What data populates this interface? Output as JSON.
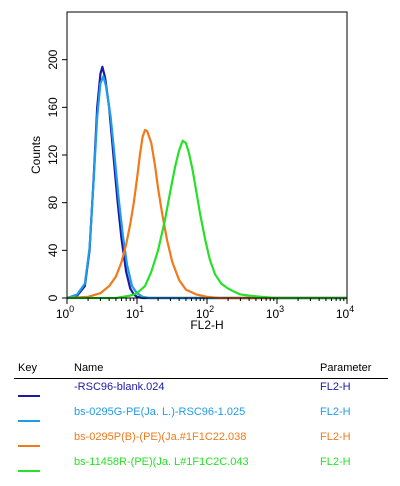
{
  "chart_data": {
    "type": "line",
    "xlabel": "FL2-H",
    "ylabel": "Counts",
    "xscale": "log",
    "xlim": [
      1,
      10000
    ],
    "ylim": [
      0,
      240
    ],
    "x_ticks": [
      {
        "value": 1,
        "base": "10",
        "exp": "0"
      },
      {
        "value": 10,
        "base": "10",
        "exp": "1"
      },
      {
        "value": 100,
        "base": "10",
        "exp": "2"
      },
      {
        "value": 1000,
        "base": "10",
        "exp": "3"
      },
      {
        "value": 10000,
        "base": "10",
        "exp": "4"
      }
    ],
    "y_ticks": [
      0,
      40,
      80,
      120,
      160,
      200
    ],
    "series": [
      {
        "name": "-RSC96-blank.024",
        "color": "#1a1aa6",
        "points": [
          [
            1,
            0
          ],
          [
            1.4,
            2
          ],
          [
            1.8,
            10
          ],
          [
            2.1,
            40
          ],
          [
            2.4,
            100
          ],
          [
            2.7,
            160
          ],
          [
            3,
            188
          ],
          [
            3.2,
            194
          ],
          [
            3.5,
            185
          ],
          [
            4,
            160
          ],
          [
            4.6,
            120
          ],
          [
            5.3,
            80
          ],
          [
            6,
            50
          ],
          [
            7,
            22
          ],
          [
            8,
            8
          ],
          [
            9,
            3
          ],
          [
            10,
            1
          ],
          [
            12,
            0
          ],
          [
            10000,
            0
          ]
        ]
      },
      {
        "name": "bs-0295G-PE(Ja. L.)-RSC96-1.025",
        "color": "#1f9be8",
        "points": [
          [
            1,
            0
          ],
          [
            1.4,
            3
          ],
          [
            1.8,
            12
          ],
          [
            2.1,
            42
          ],
          [
            2.4,
            98
          ],
          [
            2.7,
            152
          ],
          [
            3,
            180
          ],
          [
            3.3,
            186
          ],
          [
            3.6,
            178
          ],
          [
            4.2,
            152
          ],
          [
            4.8,
            118
          ],
          [
            5.5,
            82
          ],
          [
            6.3,
            52
          ],
          [
            7.2,
            28
          ],
          [
            8.5,
            10
          ],
          [
            10,
            4
          ],
          [
            12,
            1
          ],
          [
            15,
            0
          ],
          [
            10000,
            0
          ]
        ]
      },
      {
        "name": "bs-0295P(B)-(PE)(Ja.#1F1C22.038",
        "color": "#f07a1a",
        "points": [
          [
            1,
            0
          ],
          [
            2,
            1
          ],
          [
            3,
            4
          ],
          [
            4,
            10
          ],
          [
            5,
            18
          ],
          [
            6,
            30
          ],
          [
            7,
            45
          ],
          [
            8,
            62
          ],
          [
            9,
            80
          ],
          [
            10,
            100
          ],
          [
            11,
            120
          ],
          [
            12,
            135
          ],
          [
            13,
            141
          ],
          [
            14,
            140
          ],
          [
            16,
            130
          ],
          [
            18,
            112
          ],
          [
            20,
            92
          ],
          [
            23,
            70
          ],
          [
            27,
            48
          ],
          [
            32,
            30
          ],
          [
            40,
            15
          ],
          [
            50,
            7
          ],
          [
            70,
            3
          ],
          [
            100,
            1
          ],
          [
            150,
            0
          ],
          [
            10000,
            0
          ]
        ]
      },
      {
        "name": "bs-11458R-(PE)(Ja. L#1F1C2C.043",
        "color": "#28e028",
        "points": [
          [
            1,
            0
          ],
          [
            5,
            0
          ],
          [
            8,
            2
          ],
          [
            10,
            4
          ],
          [
            13,
            10
          ],
          [
            16,
            22
          ],
          [
            20,
            40
          ],
          [
            25,
            65
          ],
          [
            30,
            90
          ],
          [
            35,
            110
          ],
          [
            40,
            124
          ],
          [
            45,
            132
          ],
          [
            50,
            130
          ],
          [
            55,
            122
          ],
          [
            62,
            108
          ],
          [
            70,
            90
          ],
          [
            80,
            70
          ],
          [
            95,
            48
          ],
          [
            110,
            32
          ],
          [
            130,
            20
          ],
          [
            160,
            12
          ],
          [
            200,
            8
          ],
          [
            250,
            5
          ],
          [
            300,
            3
          ],
          [
            400,
            2
          ],
          [
            600,
            1
          ],
          [
            1000,
            0
          ],
          [
            10000,
            0
          ]
        ]
      }
    ]
  },
  "key": {
    "headers": {
      "key": "Key",
      "name": "Name",
      "parameter": "Parameter"
    },
    "rows": [
      {
        "name": "-RSC96-blank.024",
        "parameter": "FL2-H",
        "color": "#1a1aa6"
      },
      {
        "name": "bs-0295G-PE(Ja. L.)-RSC96-1.025",
        "parameter": "FL2-H",
        "color": "#1f9be8"
      },
      {
        "name": "bs-0295P(B)-(PE)(Ja.#1F1C22.038",
        "parameter": "FL2-H",
        "color": "#f07a1a"
      },
      {
        "name": "bs-11458R-(PE)(Ja. L#1F1C2C.043",
        "parameter": "FL2-H",
        "color": "#28e028"
      }
    ]
  }
}
